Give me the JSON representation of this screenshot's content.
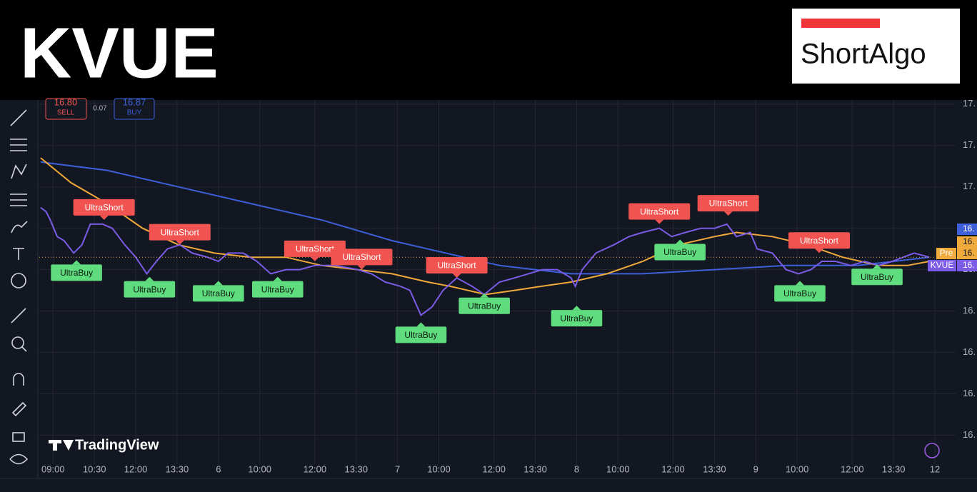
{
  "header": {
    "ticker": "KVUE",
    "logo": "ShortAlgo"
  },
  "order_panel": {
    "sell_price": "16.80",
    "sell_label": "SELL",
    "spread": "0.07",
    "buy_price": "16.87",
    "buy_label": "BUY"
  },
  "price_badges": {
    "blue": "16.",
    "orange": "16.",
    "pre_tag": "Pre",
    "pre_value": "16.",
    "symbol_tag": "KVUE",
    "symbol_value": "16."
  },
  "watermark": "TradingView",
  "chart_data": {
    "type": "line",
    "xlim": [
      -1.0,
      65.5
    ],
    "ylim": [
      16.33,
      17.21
    ],
    "grid": true,
    "xticks": [
      {
        "value": 0,
        "label": "09:00"
      },
      {
        "value": 3,
        "label": "10:30"
      },
      {
        "value": 6,
        "label": "12:00"
      },
      {
        "value": 9,
        "label": "13:30"
      },
      {
        "value": 12,
        "label": "6"
      },
      {
        "value": 15,
        "label": "10:00"
      },
      {
        "value": 19,
        "label": "12:00"
      },
      {
        "value": 22,
        "label": "13:30"
      },
      {
        "value": 25,
        "label": "7"
      },
      {
        "value": 28,
        "label": "10:00"
      },
      {
        "value": 32,
        "label": "12:00"
      },
      {
        "value": 35,
        "label": "13:30"
      },
      {
        "value": 38,
        "label": "8"
      },
      {
        "value": 41,
        "label": "10:00"
      },
      {
        "value": 45,
        "label": "12:00"
      },
      {
        "value": 48,
        "label": "13:30"
      },
      {
        "value": 51,
        "label": "9"
      },
      {
        "value": 54,
        "label": "10:00"
      },
      {
        "value": 58,
        "label": "12:00"
      },
      {
        "value": 61,
        "label": "13:30"
      },
      {
        "value": 64,
        "label": "12"
      }
    ],
    "yticks": [
      {
        "value": 17.2,
        "label": "17."
      },
      {
        "value": 17.1,
        "label": "17."
      },
      {
        "value": 17.0,
        "label": "17."
      },
      {
        "value": 16.9,
        "label": "16."
      },
      {
        "value": 16.8,
        "label": "16."
      },
      {
        "value": 16.7,
        "label": "16."
      },
      {
        "value": 16.6,
        "label": "16."
      },
      {
        "value": 16.5,
        "label": "16."
      },
      {
        "value": 16.4,
        "label": "16."
      }
    ],
    "series": [
      {
        "color": "#7b5ce6",
        "x": [
          -0.9,
          -0.5,
          -0.2,
          0.3,
          0.8,
          1.5,
          2.1,
          2.7,
          3.6,
          4.3,
          5.2,
          6.0,
          6.8,
          7.5,
          8.3,
          9.2,
          10.1,
          11.2,
          12.0,
          12.7,
          13.8,
          14.8,
          15.8,
          16.9,
          17.9,
          19.0,
          20.5,
          22.1,
          23.1,
          24.1,
          25.2,
          25.9,
          26.7,
          27.5,
          28.3,
          29.3,
          30.4,
          31.3,
          32.4,
          33.5,
          34.5,
          35.5,
          36.6,
          37.6,
          37.9,
          38.4,
          39.4,
          40.7,
          41.8,
          42.8,
          44.0,
          44.9,
          45.9,
          47.0,
          48.0,
          48.9,
          49.6,
          50.6,
          51.1,
          52.2,
          53.2,
          54.1,
          55.0,
          55.8,
          56.8,
          57.9,
          58.9,
          59.9,
          60.9,
          62.5,
          63.6
        ],
        "values": [
          16.95,
          16.94,
          16.92,
          16.88,
          16.87,
          16.84,
          16.86,
          16.91,
          16.91,
          16.9,
          16.86,
          16.83,
          16.79,
          16.82,
          16.85,
          16.86,
          16.84,
          16.83,
          16.82,
          16.84,
          16.84,
          16.82,
          16.79,
          16.8,
          16.8,
          16.81,
          16.81,
          16.8,
          16.79,
          16.77,
          16.76,
          16.75,
          16.69,
          16.71,
          16.75,
          16.78,
          16.76,
          16.74,
          16.77,
          16.78,
          16.79,
          16.8,
          16.8,
          16.78,
          16.76,
          16.8,
          16.84,
          16.86,
          16.88,
          16.89,
          16.9,
          16.88,
          16.89,
          16.9,
          16.9,
          16.91,
          16.88,
          16.89,
          16.85,
          16.84,
          16.8,
          16.79,
          16.8,
          16.82,
          16.82,
          16.81,
          16.82,
          16.81,
          16.82,
          16.84,
          16.83
        ]
      },
      {
        "color": "#f0a93b",
        "x": [
          -0.9,
          1.3,
          3.9,
          6.5,
          9.1,
          11.7,
          14.3,
          16.9,
          19.5,
          22.1,
          24.6,
          27.2,
          28.8,
          31.4,
          33.5,
          35.5,
          37.6,
          40.2,
          42.8,
          45.4,
          48.0,
          49.6,
          52.2,
          54.7,
          57.3,
          59.9,
          62.0,
          63.6
        ],
        "values": [
          17.07,
          17.01,
          16.96,
          16.9,
          16.86,
          16.84,
          16.83,
          16.83,
          16.81,
          16.8,
          16.79,
          16.77,
          16.76,
          16.74,
          16.75,
          16.76,
          16.77,
          16.79,
          16.82,
          16.86,
          16.88,
          16.89,
          16.88,
          16.86,
          16.83,
          16.81,
          16.81,
          16.82
        ]
      },
      {
        "color": "#3d5fd8",
        "x": [
          -0.9,
          3.9,
          9.1,
          14.3,
          19.5,
          24.6,
          29.8,
          32.4,
          35.0,
          37.6,
          42.8,
          48.0,
          53.2,
          58.4,
          63.6
        ],
        "values": [
          17.06,
          17.04,
          17.0,
          16.96,
          16.92,
          16.87,
          16.83,
          16.81,
          16.8,
          16.79,
          16.79,
          16.8,
          16.81,
          16.81,
          16.83
        ]
      }
    ],
    "annotations": [
      {
        "text": "UltraShort",
        "x": 3.7,
        "y": 16.91,
        "color": "#f05350"
      },
      {
        "text": "UltraShort",
        "x": 9.2,
        "y": 16.85,
        "color": "#f05350"
      },
      {
        "text": "UltraShort",
        "x": 19.0,
        "y": 16.81,
        "color": "#f05350"
      },
      {
        "text": "UltraShort",
        "x": 22.4,
        "y": 16.79,
        "color": "#f05350"
      },
      {
        "text": "UltraShort",
        "x": 29.3,
        "y": 16.77,
        "color": "#f05350"
      },
      {
        "text": "UltraShort",
        "x": 44.0,
        "y": 16.9,
        "color": "#f05350"
      },
      {
        "text": "UltraShort",
        "x": 49.0,
        "y": 16.92,
        "color": "#f05350"
      },
      {
        "text": "UltraShort",
        "x": 55.6,
        "y": 16.83,
        "color": "#f05350"
      },
      {
        "text": "UltraBuy",
        "x": 1.7,
        "y": 16.84,
        "color": "#5fdc7e"
      },
      {
        "text": "UltraBuy",
        "x": 7.0,
        "y": 16.8,
        "color": "#5fdc7e"
      },
      {
        "text": "UltraBuy",
        "x": 12.0,
        "y": 16.79,
        "color": "#5fdc7e"
      },
      {
        "text": "UltraBuy",
        "x": 16.3,
        "y": 16.8,
        "color": "#5fdc7e"
      },
      {
        "text": "UltraBuy",
        "x": 26.7,
        "y": 16.69,
        "color": "#5fdc7e"
      },
      {
        "text": "UltraBuy",
        "x": 31.3,
        "y": 16.76,
        "color": "#5fdc7e"
      },
      {
        "text": "UltraBuy",
        "x": 38.0,
        "y": 16.73,
        "color": "#5fdc7e"
      },
      {
        "text": "UltraBuy",
        "x": 45.5,
        "y": 16.89,
        "color": "#5fdc7e"
      },
      {
        "text": "UltraBuy",
        "x": 54.2,
        "y": 16.79,
        "color": "#5fdc7e"
      },
      {
        "text": "UltraBuy",
        "x": 59.8,
        "y": 16.83,
        "color": "#5fdc7e"
      }
    ]
  }
}
